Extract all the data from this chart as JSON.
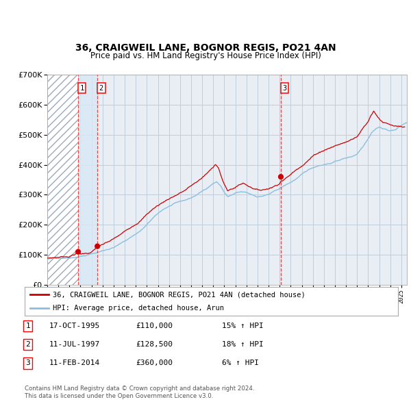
{
  "title": "36, CRAIGWEIL LANE, BOGNOR REGIS, PO21 4AN",
  "subtitle": "Price paid vs. HM Land Registry's House Price Index (HPI)",
  "legend_line1": "36, CRAIGWEIL LANE, BOGNOR REGIS, PO21 4AN (detached house)",
  "legend_line2": "HPI: Average price, detached house, Arun",
  "footer1": "Contains HM Land Registry data © Crown copyright and database right 2024.",
  "footer2": "This data is licensed under the Open Government Licence v3.0.",
  "transactions": [
    {
      "num": 1,
      "date": "17-OCT-1995",
      "price": 110000,
      "hpi_pct": "15% ↑ HPI",
      "date_val": 1995.79
    },
    {
      "num": 2,
      "date": "11-JUL-1997",
      "price": 128500,
      "hpi_pct": "18% ↑ HPI",
      "date_val": 1997.53
    },
    {
      "num": 3,
      "date": "11-FEB-2014",
      "price": 360000,
      "hpi_pct": "6% ↑ HPI",
      "date_val": 2014.11
    }
  ],
  "hpi_color": "#8bbfdf",
  "price_color": "#cc0000",
  "marker_color": "#cc0000",
  "vline_color": "#ee4444",
  "shade_color": "#d8e8f4",
  "hatch_color": "#9aaabb",
  "grid_color": "#c0ccd8",
  "bg_color": "#e8eef4",
  "ylim": [
    0,
    700000
  ],
  "yticks": [
    0,
    100000,
    200000,
    300000,
    400000,
    500000,
    600000,
    700000
  ],
  "xlim_start": 1993.0,
  "xlim_end": 2025.5
}
